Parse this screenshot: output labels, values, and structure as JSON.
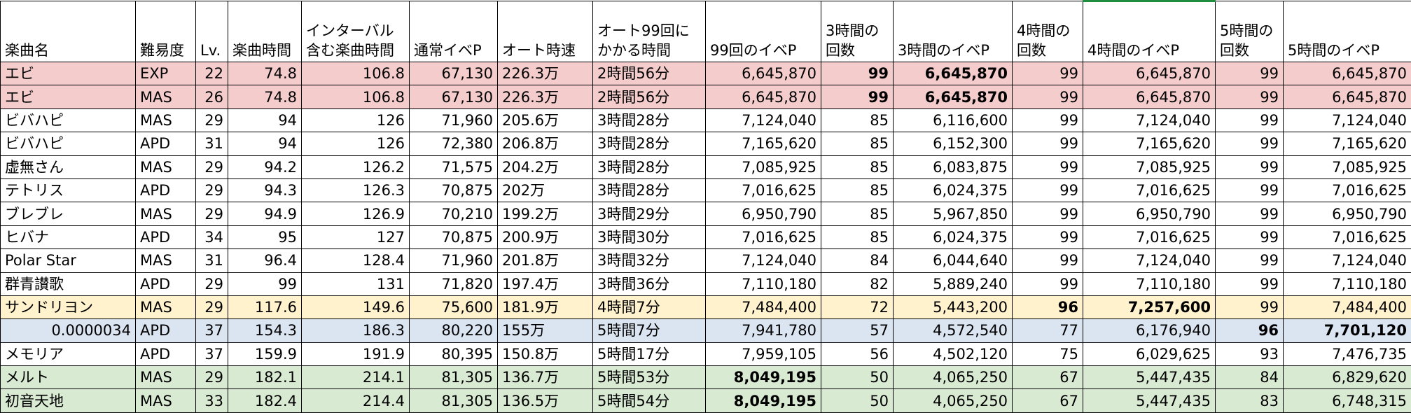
{
  "headers": [
    "楽曲名",
    "難易度",
    "Lv.",
    "楽曲時間",
    "インターバル\n含む楽曲時間",
    "通常イベP",
    "オート時速",
    "オート99回に\nかかる時間",
    "99回のイベP",
    "3時間の\n回数",
    "3時間のイベP",
    "4時間の\n回数",
    "4時間のイベP",
    "5時間の\n回数",
    "5時間のイベP"
  ],
  "rows": [
    {
      "cells": [
        "エビ",
        "EXP",
        "22",
        "74.8",
        "106.8",
        "67,130",
        "226.3万",
        "2時間56分",
        "6,645,870",
        "99",
        "6,645,870",
        "99",
        "6,645,870",
        "99",
        "6,645,870"
      ],
      "bold": [
        9,
        10
      ],
      "color": "pink"
    },
    {
      "cells": [
        "エビ",
        "MAS",
        "26",
        "74.8",
        "106.8",
        "67,130",
        "226.3万",
        "2時間56分",
        "6,645,870",
        "99",
        "6,645,870",
        "99",
        "6,645,870",
        "99",
        "6,645,870"
      ],
      "bold": [
        9,
        10
      ],
      "color": "pink"
    },
    {
      "cells": [
        "ビバハピ",
        "MAS",
        "29",
        "94",
        "126",
        "71,960",
        "205.6万",
        "3時間28分",
        "7,124,040",
        "85",
        "6,116,600",
        "99",
        "7,124,040",
        "99",
        "7,124,040"
      ],
      "bold": [],
      "color": "none"
    },
    {
      "cells": [
        "ビバハピ",
        "APD",
        "31",
        "94",
        "126",
        "72,380",
        "206.8万",
        "3時間28分",
        "7,165,620",
        "85",
        "6,152,300",
        "99",
        "7,165,620",
        "99",
        "7,165,620"
      ],
      "bold": [],
      "color": "none"
    },
    {
      "cells": [
        "虚無さん",
        "MAS",
        "29",
        "94.2",
        "126.2",
        "71,575",
        "204.2万",
        "3時間28分",
        "7,085,925",
        "85",
        "6,083,875",
        "99",
        "7,085,925",
        "99",
        "7,085,925"
      ],
      "bold": [],
      "color": "none"
    },
    {
      "cells": [
        "テトリス",
        "APD",
        "29",
        "94.3",
        "126.3",
        "70,875",
        "202万",
        "3時間28分",
        "7,016,625",
        "85",
        "6,024,375",
        "99",
        "7,016,625",
        "99",
        "7,016,625"
      ],
      "bold": [],
      "color": "none"
    },
    {
      "cells": [
        "ブレブレ",
        "MAS",
        "29",
        "94.9",
        "126.9",
        "70,210",
        "199.2万",
        "3時間29分",
        "6,950,790",
        "85",
        "5,967,850",
        "99",
        "6,950,790",
        "99",
        "6,950,790"
      ],
      "bold": [],
      "color": "none"
    },
    {
      "cells": [
        "ヒバナ",
        "APD",
        "34",
        "95",
        "127",
        "70,875",
        "200.9万",
        "3時間30分",
        "7,016,625",
        "85",
        "6,024,375",
        "99",
        "7,016,625",
        "99",
        "7,016,625"
      ],
      "bold": [],
      "color": "none"
    },
    {
      "cells": [
        "Polar Star",
        "MAS",
        "31",
        "96.4",
        "128.4",
        "71,960",
        "201.8万",
        "3時間32分",
        "7,124,040",
        "84",
        "6,044,640",
        "99",
        "7,124,040",
        "99",
        "7,124,040"
      ],
      "bold": [],
      "color": "none"
    },
    {
      "cells": [
        "群青讃歌",
        "APD",
        "29",
        "99",
        "131",
        "71,820",
        "197.4万",
        "3時間36分",
        "7,110,180",
        "82",
        "5,889,240",
        "99",
        "7,110,180",
        "99",
        "7,110,180"
      ],
      "bold": [],
      "color": "none"
    },
    {
      "cells": [
        "サンドリヨン",
        "MAS",
        "29",
        "117.6",
        "149.6",
        "75,600",
        "181.9万",
        "4時間7分",
        "7,484,400",
        "72",
        "5,443,200",
        "96",
        "7,257,600",
        "99",
        "7,484,400"
      ],
      "bold": [
        11,
        12
      ],
      "color": "yellow"
    },
    {
      "cells": [
        "0.0000034",
        "APD",
        "37",
        "154.3",
        "186.3",
        "80,220",
        "155万",
        "5時間7分",
        "7,941,780",
        "57",
        "4,572,540",
        "77",
        "6,176,940",
        "96",
        "7,701,120"
      ],
      "bold": [
        13,
        14
      ],
      "color": "blue"
    },
    {
      "cells": [
        "メモリア",
        "APD",
        "37",
        "159.9",
        "191.9",
        "80,395",
        "150.8万",
        "5時間17分",
        "7,959,105",
        "56",
        "4,502,120",
        "75",
        "6,029,625",
        "93",
        "7,476,735"
      ],
      "bold": [],
      "color": "none"
    },
    {
      "cells": [
        "メルト",
        "MAS",
        "29",
        "182.1",
        "214.1",
        "81,305",
        "136.7万",
        "5時間53分",
        "8,049,195",
        "50",
        "4,065,250",
        "67",
        "5,447,435",
        "84",
        "6,829,620"
      ],
      "bold": [
        8
      ],
      "color": "green"
    },
    {
      "cells": [
        "初音天地",
        "MAS",
        "33",
        "182.4",
        "214.4",
        "81,305",
        "136.5万",
        "5時間54分",
        "8,049,195",
        "50",
        "4,065,250",
        "67",
        "5,447,435",
        "83",
        "6,748,315"
      ],
      "bold": [
        8
      ],
      "color": "green"
    }
  ]
}
